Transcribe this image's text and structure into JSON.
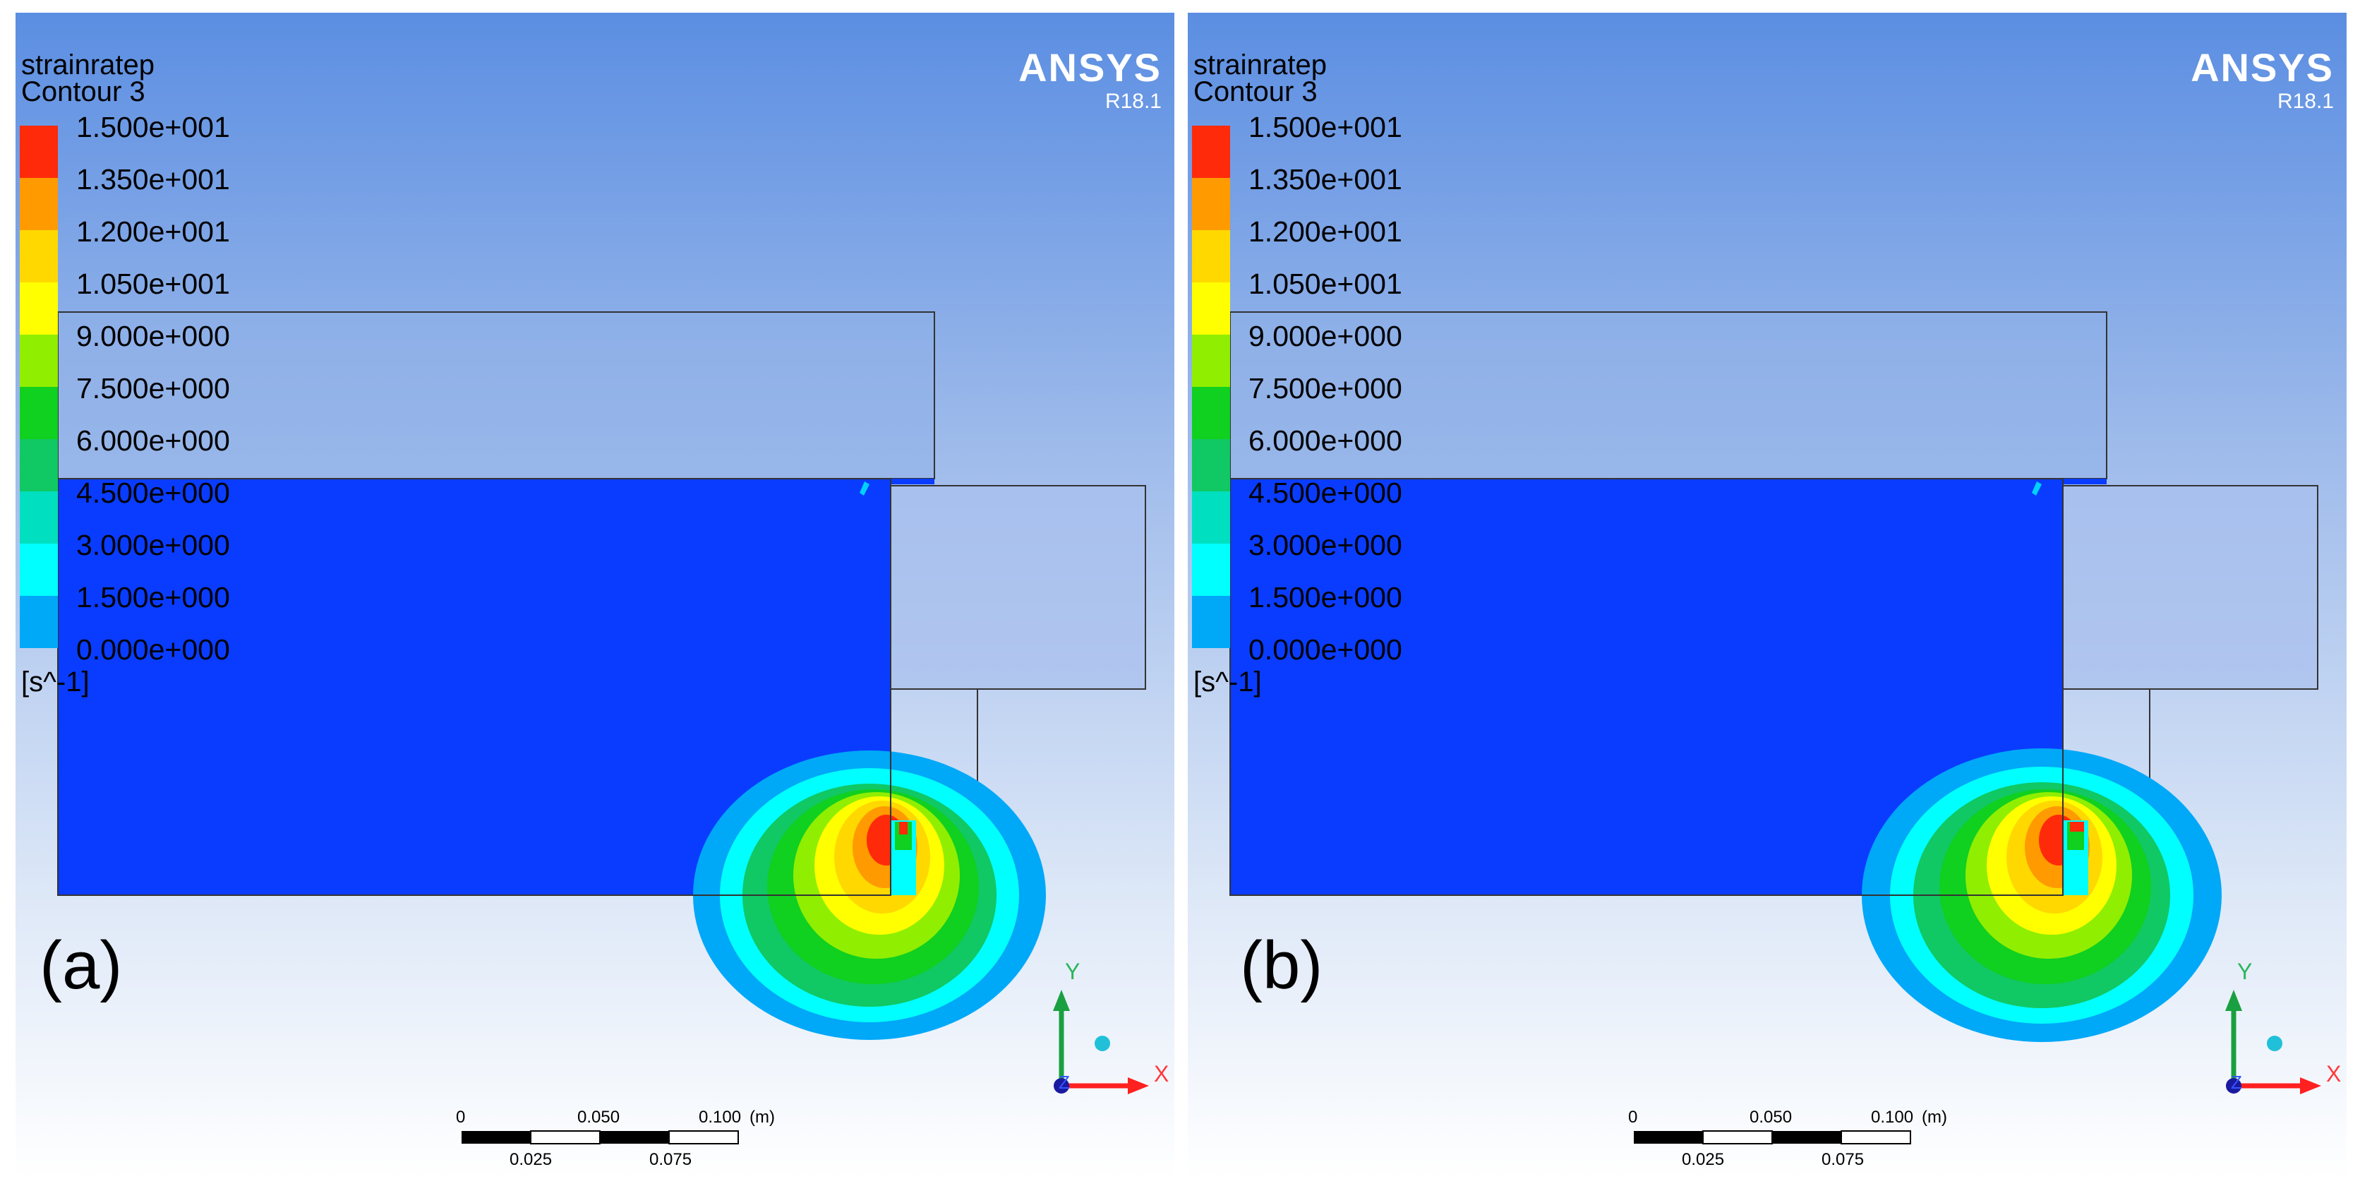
{
  "panels": [
    {
      "label": "(a)",
      "variable": "strainratep",
      "contour": "Contour 3",
      "brand": "ANSYS",
      "version": "R18.1",
      "units": "[s^-1]",
      "legend_ticks": [
        "1.500e+001",
        "1.350e+001",
        "1.200e+001",
        "1.050e+001",
        "9.000e+000",
        "7.500e+000",
        "6.000e+000",
        "4.500e+000",
        "3.000e+000",
        "1.500e+000",
        "0.000e+000"
      ],
      "axes": {
        "x": "X",
        "y": "Y",
        "z": "Z"
      },
      "scale_bar": {
        "top_labels": [
          "0",
          "0.050",
          "0.100"
        ],
        "unit": "(m)",
        "bottom_labels": [
          "0.025",
          "0.075"
        ]
      }
    },
    {
      "label": "(b)",
      "variable": "strainratep",
      "contour": "Contour 3",
      "brand": "ANSYS",
      "version": "R18.1",
      "units": "[s^-1]",
      "legend_ticks": [
        "1.500e+001",
        "1.350e+001",
        "1.200e+001",
        "1.050e+001",
        "9.000e+000",
        "7.500e+000",
        "6.000e+000",
        "4.500e+000",
        "3.000e+000",
        "1.500e+000",
        "0.000e+000"
      ],
      "axes": {
        "x": "X",
        "y": "Y",
        "z": "Z"
      },
      "scale_bar": {
        "top_labels": [
          "0",
          "0.050",
          "0.100"
        ],
        "unit": "(m)",
        "bottom_labels": [
          "0.025",
          "0.075"
        ]
      }
    }
  ],
  "legend_colors": [
    "#ff2a0a",
    "#ff9a00",
    "#ffd800",
    "#ffff00",
    "#90ee00",
    "#10d020",
    "#10c864",
    "#00e0c0",
    "#00ffff",
    "#00a8f8",
    "#0a3cff"
  ],
  "colors": {
    "background_top": "#5b8ee2",
    "background_bottom": "#ffffff",
    "domain_fill": "#0a3cff",
    "axis_x": "#ff3b3b",
    "axis_y": "#2bb55b",
    "axis_origin": "#1a1aa0"
  }
}
